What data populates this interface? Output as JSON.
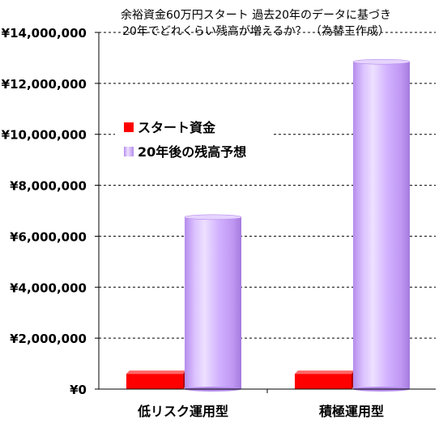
{
  "chart_data": {
    "type": "bar",
    "title_line1": "余裕資金60万円スタート 過去20年のデータに基づき",
    "title_line2": "20年でどれくらい残高が増えるか？ （為替王作成）",
    "xlabel": "",
    "ylabel": "",
    "categories": [
      "低リスク運用型",
      "積極運用型"
    ],
    "series": [
      {
        "name": "スタート資金",
        "values": [
          600000,
          600000
        ],
        "color": "#ff0000",
        "style": "flat-3d"
      },
      {
        "name": "20年後の残高予想",
        "values": [
          6750000,
          12850000
        ],
        "color": "#cc99ff",
        "style": "cylinder"
      }
    ],
    "ylim": [
      0,
      14000000
    ],
    "yticks": [
      0,
      2000000,
      4000000,
      6000000,
      8000000,
      10000000,
      12000000,
      14000000
    ],
    "ytick_labels": [
      "¥0",
      "¥2,000,000",
      "¥4,000,000",
      "¥6,000,000",
      "¥8,000,000",
      "¥10,000,000",
      "¥12,000,000",
      "¥14,000,000"
    ],
    "grid": true,
    "grid_style": "dashed",
    "legend_position": "left-middle"
  }
}
